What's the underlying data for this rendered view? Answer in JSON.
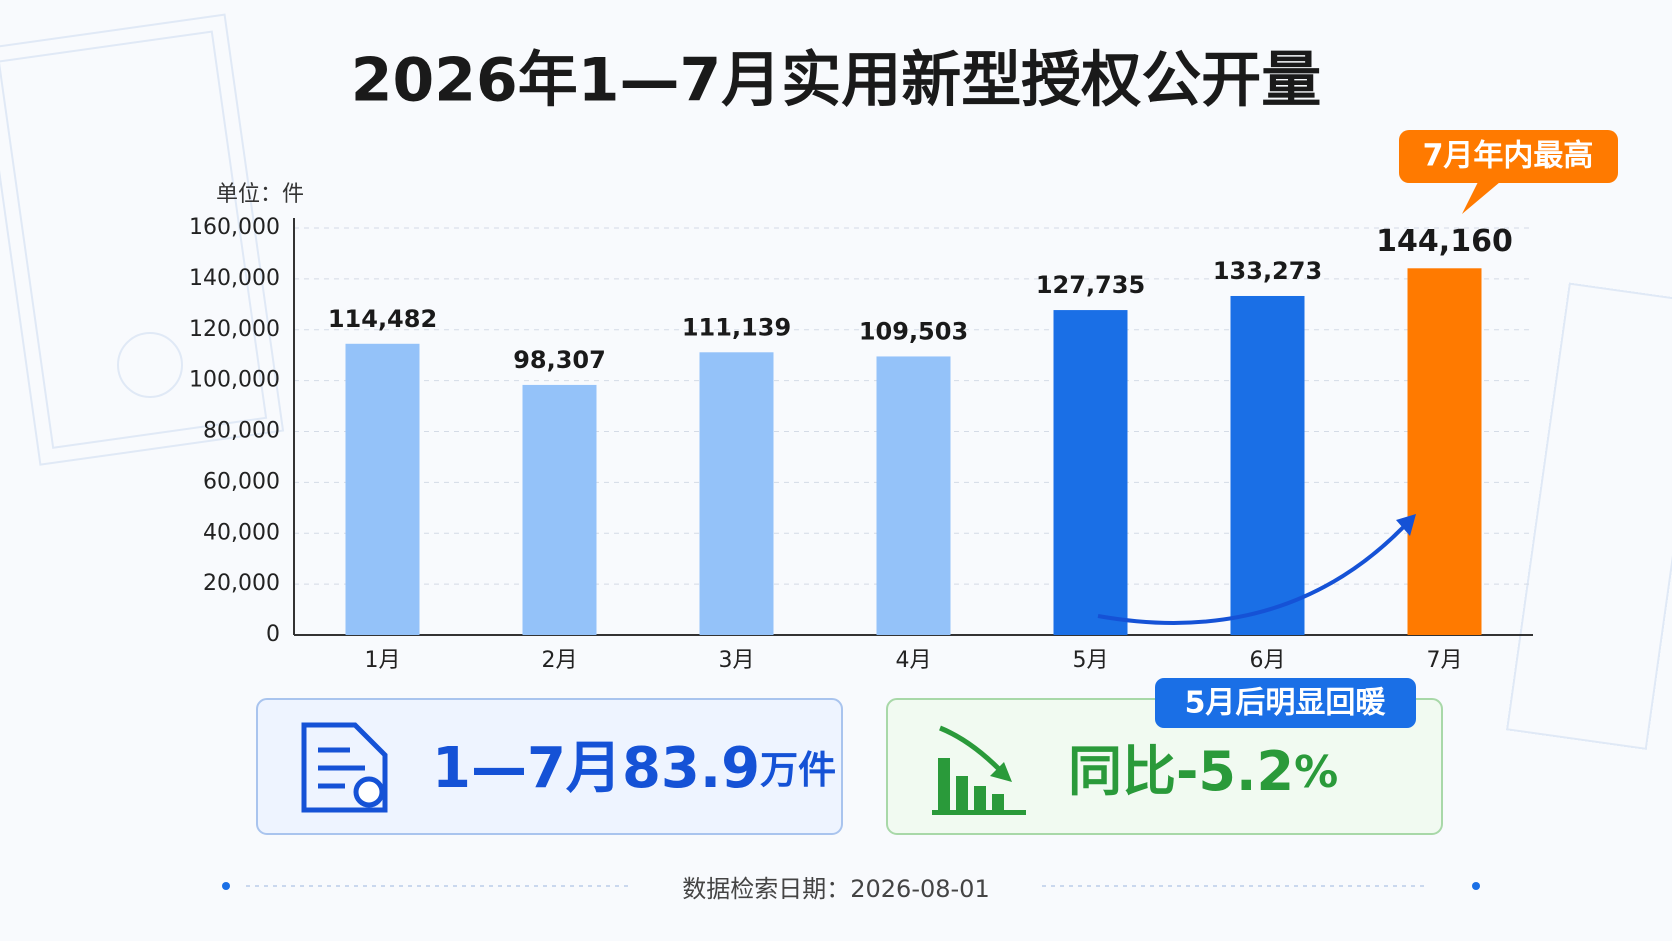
{
  "chart_data": {
    "type": "bar",
    "title": "2026年1—7月实用新型授权公开量",
    "unit_label": "单位：件",
    "categories": [
      "1月",
      "2月",
      "3月",
      "4月",
      "5月",
      "6月",
      "7月"
    ],
    "values": [
      114482,
      98307,
      111139,
      109503,
      127735,
      133273,
      144160
    ],
    "value_labels": [
      "114,482",
      "98,307",
      "111,139",
      "109,503",
      "127,735",
      "133,273",
      "144,160"
    ],
    "colors": [
      "#94c2f9",
      "#94c2f9",
      "#94c2f9",
      "#94c2f9",
      "#1a6fe6",
      "#1a6fe6",
      "#ff7a00"
    ],
    "ylim": [
      0,
      160000
    ],
    "yticks": [
      0,
      {
        "value": 20000,
        "label": "20,000"
      },
      {
        "value": 40000,
        "label": "40,000"
      },
      {
        "value": 60000,
        "label": "60,000"
      },
      {
        "value": 80000,
        "label": "80,000"
      },
      {
        "value": 100000,
        "label": "100,000"
      },
      {
        "value": 120000,
        "label": "120,000"
      },
      {
        "value": 140000,
        "label": "140,000"
      },
      {
        "value": 160000,
        "label": "160,000"
      }
    ],
    "grid": true,
    "callout": "7月年内最高",
    "trend_note": "5月后明显回暖"
  },
  "summary": {
    "total_prefix": "1—7月",
    "total_number": "83.9",
    "total_unit": "万件",
    "yoy_prefix": "同比",
    "yoy_number": "-5.2",
    "yoy_unit": "%"
  },
  "footer": "数据检索日期：2026-08-01"
}
